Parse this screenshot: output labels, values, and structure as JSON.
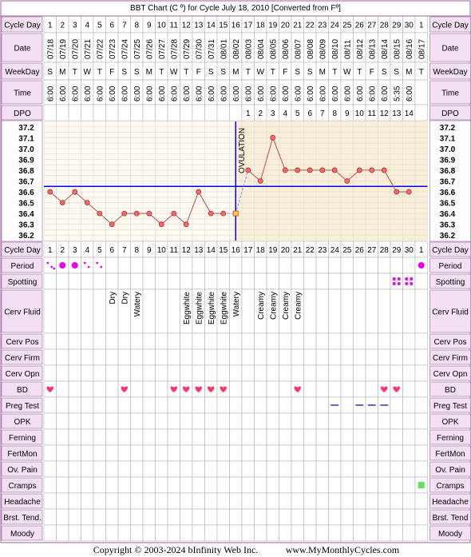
{
  "title": "BBT Chart (C º) for Cycle July 18, 2010  [Converted from Fº]",
  "footer": {
    "copyright": "Copyright © 2003-2024 bInfinity Web Inc.",
    "site": "www.MyMonthlyCycles.com"
  },
  "colors": {
    "border": "#996699",
    "label_bg": "#f4e0f4",
    "cell_border": "#aaa",
    "pre_ovulation_bg": "#fffaf0",
    "post_ovulation_bg": "#fbeed6",
    "grid": "#dddddd",
    "temp_line": "#b85050",
    "point_fill": "#ff6666",
    "coverline": "#0000ff",
    "ovulation_line": "#0000ff",
    "period_color": "#ee00ee",
    "heart_color": "#ff3366",
    "preg_test_color": "#6666cc",
    "cramp_color": "#66dd66"
  },
  "row_labels": {
    "cycle_day": "Cycle Day",
    "date": "Date",
    "weekday": "WeekDay",
    "time": "Time",
    "dpo": "DPO",
    "period": "Period",
    "spotting": "Spotting",
    "cerv_fluid": "Cerv Fluid",
    "cerv_pos": "Cerv Pos",
    "cerv_firm": "Cerv Firm",
    "cerv_opn": "Cerv Opn",
    "bd": "BD",
    "preg_test": "Preg Test",
    "opk": "OPK",
    "ferning": "Ferning",
    "fertmon": "FertMon",
    "ov_pain": "Ov. Pain",
    "cramps": "Cramps",
    "headache": "Headache",
    "brst_tend_left": "Brst. Tend.",
    "brst_tend_right": "Brst. Tend",
    "moody": "Moody"
  },
  "ovulation_label": "OVULATION",
  "chart_data": {
    "type": "line",
    "title": "BBT Chart (C º) for Cycle July 18, 2010  [Converted from Fº]",
    "cycle_days": [
      "1",
      "2",
      "3",
      "4",
      "5",
      "6",
      "7",
      "8",
      "9",
      "10",
      "11",
      "12",
      "13",
      "14",
      "15",
      "16",
      "17",
      "18",
      "19",
      "20",
      "21",
      "22",
      "23",
      "24",
      "25",
      "26",
      "27",
      "28",
      "29",
      "30",
      "1"
    ],
    "dates": [
      "07/18",
      "07/19",
      "07/20",
      "07/21",
      "07/22",
      "07/23",
      "07/24",
      "07/25",
      "07/26",
      "07/27",
      "07/28",
      "07/29",
      "07/30",
      "07/31",
      "08/01",
      "08/02",
      "08/03",
      "08/04",
      "08/05",
      "08/06",
      "08/07",
      "08/08",
      "08/09",
      "08/10",
      "08/11",
      "08/12",
      "08/13",
      "08/14",
      "08/15",
      "08/16",
      "08/17"
    ],
    "weekdays": [
      "S",
      "M",
      "T",
      "W",
      "T",
      "F",
      "S",
      "S",
      "M",
      "T",
      "W",
      "T",
      "F",
      "S",
      "S",
      "M",
      "T",
      "W",
      "T",
      "F",
      "S",
      "S",
      "M",
      "T",
      "W",
      "T",
      "F",
      "S",
      "S",
      "M",
      "T"
    ],
    "times": [
      "6:00",
      "6:00",
      "6:00",
      "6:00",
      "6:00",
      "6:00",
      "6:00",
      "6:00",
      "6:00",
      "6:00",
      "6:00",
      "6:00",
      "6:00",
      "6:00",
      "6:00",
      "6:00",
      "6:00",
      "6:00",
      "6:00",
      "6:00",
      "6:00",
      "6:00",
      "6:00",
      "6:00",
      "6:00",
      "6:00",
      "6:00",
      "6:00",
      "5:35",
      "6:00",
      ""
    ],
    "dpo": [
      "",
      "",
      "",
      "",
      "",
      "",
      "",
      "",
      "",
      "",
      "",
      "",
      "",
      "",
      "",
      "",
      "1",
      "2",
      "3",
      "4",
      "5",
      "6",
      "7",
      "8",
      "9",
      "10",
      "11",
      "12",
      "13",
      "14",
      ""
    ],
    "y_ticks": [
      "37.2",
      "37.1",
      "37.0",
      "36.9",
      "36.8",
      "36.7",
      "36.6",
      "36.5",
      "36.4",
      "36.3",
      "36.2"
    ],
    "ylim": [
      36.15,
      37.25
    ],
    "temperatures": [
      36.6,
      36.5,
      36.6,
      36.5,
      36.4,
      36.3,
      36.4,
      36.4,
      36.4,
      36.3,
      36.4,
      36.3,
      36.6,
      36.4,
      36.4,
      36.4,
      36.8,
      36.7,
      37.1,
      36.8,
      36.8,
      36.8,
      36.8,
      36.8,
      36.7,
      36.8,
      36.8,
      36.8,
      36.6,
      36.6,
      null
    ],
    "marker_types": [
      "dot",
      "dot",
      "dot",
      "dot",
      "dot",
      "dot",
      "dot",
      "dot",
      "dot",
      "dot",
      "dot",
      "dot",
      "dot",
      "dot",
      "dot",
      "square",
      "dot",
      "dot",
      "dot",
      "dot",
      "dot",
      "dot",
      "dot",
      "dot",
      "dot",
      "dot",
      "dot",
      "dot",
      "dot",
      "dot",
      ""
    ],
    "coverline": 36.65,
    "ovulation_after_day_index": 15,
    "period": [
      "heavy",
      "medium",
      "medium",
      "light",
      "light",
      "",
      "",
      "",
      "",
      "",
      "",
      "",
      "",
      "",
      "",
      "",
      "",
      "",
      "",
      "",
      "",
      "",
      "",
      "",
      "",
      "",
      "",
      "",
      "",
      "",
      "medium"
    ],
    "spotting": [
      "",
      "",
      "",
      "",
      "",
      "",
      "",
      "",
      "",
      "",
      "",
      "",
      "",
      "",
      "",
      "",
      "",
      "",
      "",
      "",
      "",
      "",
      "",
      "",
      "",
      "",
      "",
      "",
      "spot",
      "spot",
      ""
    ],
    "cerv_fluid": [
      "",
      "",
      "",
      "",
      "",
      "Dry",
      "Dry",
      "Watery",
      "",
      "",
      "",
      "Eggwhite",
      "Eggwhite",
      "Eggwhite",
      "Eggwhite",
      "Watery",
      "",
      "Creamy",
      "Creamy",
      "Creamy",
      "Creamy",
      "",
      "",
      "",
      "",
      "",
      "",
      "",
      "",
      "",
      ""
    ],
    "bd": [
      "heart",
      "",
      "",
      "",
      "",
      "",
      "heart",
      "",
      "",
      "",
      "heart",
      "heart",
      "heart",
      "heart",
      "heart",
      "",
      "",
      "",
      "",
      "",
      "heart",
      "",
      "",
      "",
      "",
      "",
      "",
      "heart",
      "heart",
      "",
      ""
    ],
    "preg_test": [
      "",
      "",
      "",
      "",
      "",
      "",
      "",
      "",
      "",
      "",
      "",
      "",
      "",
      "",
      "",
      "",
      "",
      "",
      "",
      "",
      "",
      "",
      "",
      "dash",
      "",
      "dash",
      "dash",
      "dash",
      "",
      "",
      ""
    ],
    "cramps": [
      "",
      "",
      "",
      "",
      "",
      "",
      "",
      "",
      "",
      "",
      "",
      "",
      "",
      "",
      "",
      "",
      "",
      "",
      "",
      "",
      "",
      "",
      "",
      "",
      "",
      "",
      "",
      "",
      "",
      "",
      "mark"
    ]
  }
}
